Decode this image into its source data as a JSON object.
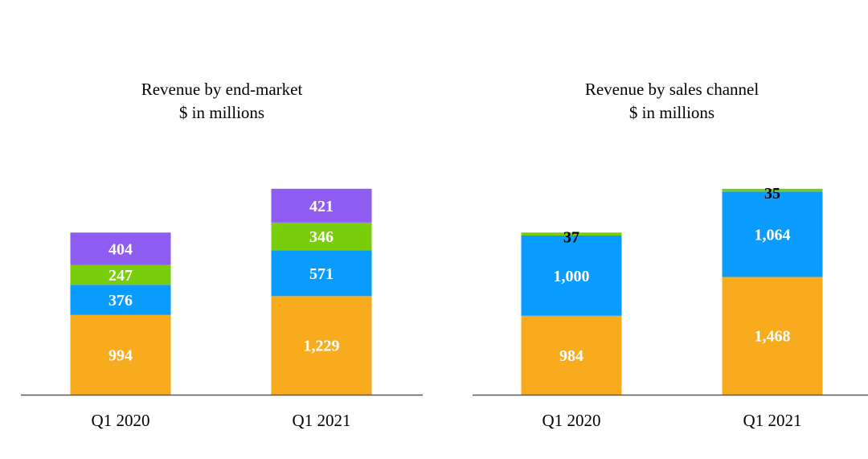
{
  "chart_data": [
    {
      "type": "bar",
      "stacked": true,
      "title": "Revenue by end-market",
      "subtitle": "$ in millions",
      "categories": [
        "Q1 2020",
        "Q1 2021"
      ],
      "series": [
        {
          "values": [
            994,
            1229
          ],
          "labels": [
            "994",
            "1,229"
          ],
          "color": "#F8AB1C",
          "label_color": "#ffffff"
        },
        {
          "values": [
            376,
            571
          ],
          "labels": [
            "376",
            "571"
          ],
          "color": "#0A9BFF",
          "label_color": "#ffffff"
        },
        {
          "values": [
            247,
            346
          ],
          "labels": [
            "247",
            "346"
          ],
          "color": "#78CE0A",
          "label_color": "#ffffff"
        },
        {
          "values": [
            404,
            421
          ],
          "labels": [
            "404",
            "421"
          ],
          "color": "#8F5CF2",
          "label_color": "#ffffff"
        }
      ],
      "grid": false,
      "legend": "none"
    },
    {
      "type": "bar",
      "stacked": true,
      "title": "Revenue by sales channel",
      "subtitle": "$ in millions",
      "categories": [
        "Q1 2020",
        "Q1 2021"
      ],
      "series": [
        {
          "values": [
            984,
            1468
          ],
          "labels": [
            "984",
            "1,468"
          ],
          "color": "#F8AB1C",
          "label_color": "#ffffff"
        },
        {
          "values": [
            1000,
            1064
          ],
          "labels": [
            "1,000",
            "1,064"
          ],
          "color": "#0A9BFF",
          "label_color": "#ffffff"
        },
        {
          "values": [
            37,
            35
          ],
          "labels": [
            "37",
            "35"
          ],
          "color": "#78CE0A",
          "label_color": "#000000"
        }
      ],
      "grid": false,
      "legend": "none"
    }
  ]
}
